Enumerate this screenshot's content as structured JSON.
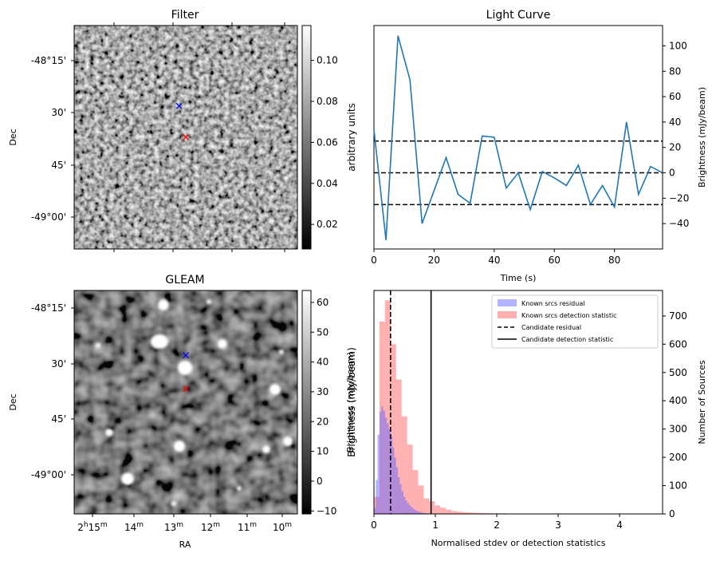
{
  "chart_data": [
    {
      "type": "heatmap",
      "title": "Filter",
      "ylabel": "Dec",
      "y_ticks": [
        "-48°15'",
        "30'",
        "45'",
        "-49°00'"
      ],
      "colorbar": {
        "label": "arbitrary units",
        "range": [
          0.008,
          0.117
        ],
        "ticks": [
          "0.02",
          "0.04",
          "0.06",
          "0.08",
          "0.10"
        ],
        "tick_values": [
          0.02,
          0.04,
          0.06,
          0.08,
          0.1
        ]
      },
      "markers": [
        {
          "name": "blue-x",
          "color": "#0000ff",
          "fx": 0.47,
          "fy": 0.36
        },
        {
          "name": "red-x",
          "color": "#ff0000",
          "fx": 0.5,
          "fy": 0.5
        }
      ]
    },
    {
      "type": "line",
      "title": "Light Curve",
      "xlabel": "Time (s)",
      "ylabel": "Brightness (mJy/beam)",
      "xlim": [
        0,
        96
      ],
      "ylim": [
        -60,
        116
      ],
      "x_ticks": [
        0,
        20,
        40,
        60,
        80
      ],
      "y_ticks": [
        -40,
        -20,
        0,
        20,
        40,
        60,
        80,
        100
      ],
      "line_color": "#1f77b4",
      "hlines": [
        25,
        0,
        -25
      ],
      "series": [
        {
          "x": [
            0,
            4,
            8,
            12,
            16,
            20,
            24,
            28,
            32,
            36,
            40,
            44,
            48,
            52,
            56,
            60,
            64,
            68,
            72,
            76,
            80,
            84,
            88,
            92,
            96
          ],
          "y": [
            34,
            -53,
            108,
            73,
            -40,
            -14,
            12,
            -17,
            -24,
            29,
            28,
            -12,
            0,
            -29,
            1,
            -4,
            -10,
            6,
            -25,
            -10,
            -27,
            40,
            -17,
            5,
            0
          ]
        }
      ]
    },
    {
      "type": "heatmap",
      "title": "GLEAM",
      "ylabel": "Dec",
      "xlabel": "RA",
      "y_ticks": [
        "-48°15'",
        "30'",
        "45'",
        "-49°00'"
      ],
      "x_ticks": [
        {
          "h": "2",
          "hu": "h",
          "m": "15",
          "mu": "m"
        },
        {
          "h": "",
          "hu": "",
          "m": "14",
          "mu": "m"
        },
        {
          "h": "",
          "hu": "",
          "m": "13",
          "mu": "m"
        },
        {
          "h": "",
          "hu": "",
          "m": "12",
          "mu": "m"
        },
        {
          "h": "",
          "hu": "",
          "m": "11",
          "mu": "m"
        },
        {
          "h": "",
          "hu": "",
          "m": "10",
          "mu": "m"
        }
      ],
      "colorbar": {
        "label": "Brightness (mJy/beam)",
        "range": [
          -11,
          64
        ],
        "ticks": [
          "−10",
          "0",
          "10",
          "20",
          "30",
          "40",
          "50",
          "60"
        ],
        "tick_values": [
          -10,
          0,
          10,
          20,
          30,
          40,
          50,
          60
        ]
      },
      "markers": [
        {
          "name": "blue-x",
          "color": "#0000ff",
          "fx": 0.5,
          "fy": 0.29
        },
        {
          "name": "red-x",
          "color": "#ff0000",
          "fx": 0.5,
          "fy": 0.44
        }
      ]
    },
    {
      "type": "bar",
      "xlabel": "Normalised stdev or detection statistics",
      "ylabel": "Number of Sources",
      "left_ylabel": "Brightness (mJy/beam)",
      "xlim": [
        0,
        4.7
      ],
      "ylim": [
        0,
        790
      ],
      "x_ticks": [
        0,
        1,
        2,
        3,
        4
      ],
      "y_ticks": [
        0,
        100,
        200,
        300,
        400,
        500,
        600,
        700
      ],
      "legend": {
        "placement": "top-right",
        "entries": [
          {
            "label": "Known srcs residual",
            "kind": "patch",
            "color": "#b3b3ff"
          },
          {
            "label": "Known srcs detection statistic",
            "kind": "patch",
            "color": "#ffb0b0"
          },
          {
            "label": "Candidate residual",
            "kind": "dashed"
          },
          {
            "label": "Candidate detection statistic",
            "kind": "solid"
          }
        ]
      },
      "vlines": [
        {
          "x": 0.27,
          "style": "dashed"
        },
        {
          "x": 0.93,
          "style": "solid"
        }
      ],
      "series": [
        {
          "name": "Known srcs detection statistic",
          "color": "#ff7070",
          "bin_width": 0.09,
          "bin_start": 0,
          "values": [
            60,
            680,
            755,
            600,
            475,
            345,
            245,
            155,
            100,
            55,
            45,
            30,
            22,
            15,
            10,
            8,
            6,
            5,
            4,
            3,
            3,
            2,
            2,
            2,
            1,
            1,
            1,
            1,
            1,
            1,
            1,
            1,
            1,
            1,
            0,
            0,
            0,
            0,
            0,
            0,
            0,
            0,
            0,
            0,
            0,
            0,
            0,
            0,
            0,
            1,
            0
          ]
        },
        {
          "name": "Known srcs residual",
          "color": "#6464ff",
          "bin_width": 0.03,
          "bin_start": 0,
          "values": [
            20,
            120,
            280,
            360,
            380,
            365,
            340,
            320,
            300,
            275,
            235,
            200,
            165,
            130,
            105,
            80,
            60,
            48,
            38,
            30,
            24,
            18,
            14,
            10,
            8,
            6,
            4,
            3,
            2,
            1,
            1
          ]
        }
      ]
    }
  ]
}
